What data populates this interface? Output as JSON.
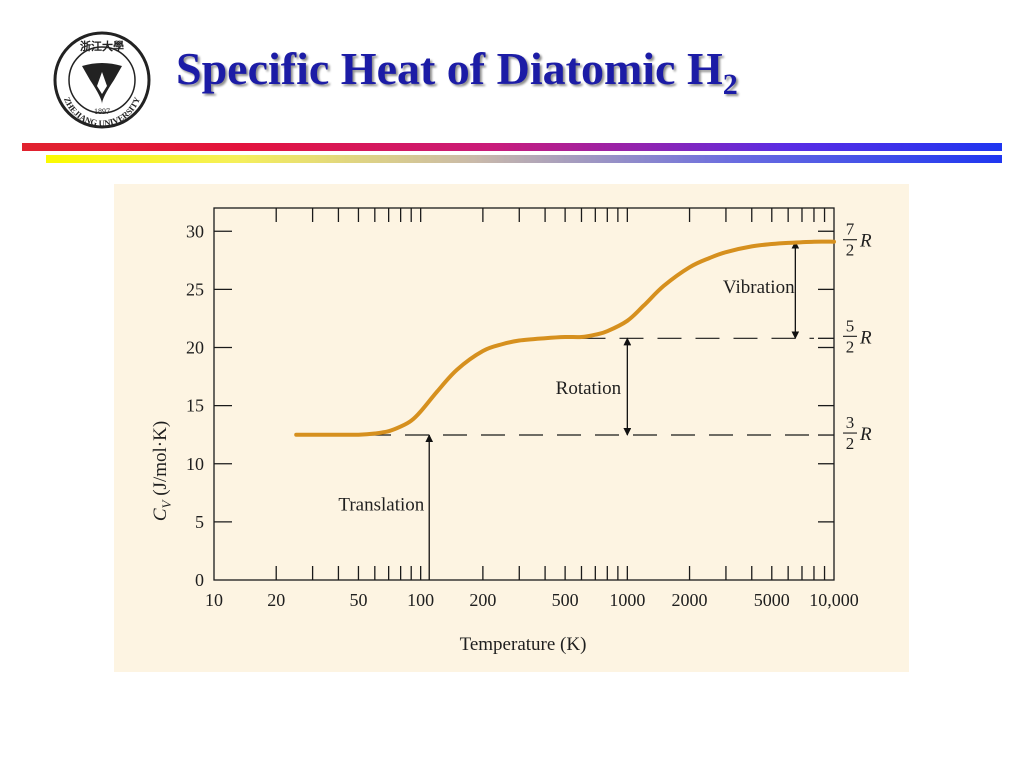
{
  "slide": {
    "title": "Specific Heat of Diatomic H",
    "title_subscript": "2",
    "title_color": "#1c1ca6"
  },
  "logo": {
    "icon": "zhejiang-university-seal-icon",
    "top_text": "浙江大學",
    "year": "1897",
    "bottom_text": "ZHEJIANG UNIVERSITY"
  },
  "colors": {
    "curve": "#d6901e",
    "panel_background": "#fdf4e2",
    "band_top_start": "#e1222e",
    "band_top_end": "#1f36f0",
    "band_bottom_start": "#fbfb00",
    "band_bottom_end": "#1f36f0"
  },
  "chart_data": {
    "type": "line",
    "x_scale": "log",
    "xlim": [
      10,
      10000
    ],
    "ylim": [
      0,
      32
    ],
    "xlabel": "Temperature (K)",
    "ylabel": "C_V (J/mol·K)",
    "ylabel_main": "C",
    "ylabel_sub": "V",
    "ylabel_units": " (J/mol·K)",
    "x_ticks": [
      10,
      20,
      50,
      100,
      200,
      500,
      1000,
      2000,
      5000,
      10000
    ],
    "x_tick_labels": [
      "10",
      "20",
      "50",
      "100",
      "200",
      "500",
      "1000",
      "2000",
      "5000",
      "10,000"
    ],
    "y_ticks": [
      0,
      5,
      10,
      15,
      20,
      25,
      30
    ],
    "y_tick_labels": [
      "0",
      "5",
      "10",
      "15",
      "20",
      "25",
      "30"
    ],
    "series": [
      {
        "x": [
          25,
          30,
          40,
          50,
          60,
          70,
          80,
          90,
          100,
          120,
          150,
          200,
          250,
          300,
          400,
          500,
          600,
          700,
          800,
          1000,
          1200,
          1500,
          2000,
          2500,
          3000,
          4000,
          5000,
          6000,
          8000,
          10000
        ],
        "y": [
          12.5,
          12.5,
          12.5,
          12.5,
          12.6,
          12.8,
          13.2,
          13.7,
          14.5,
          16.2,
          18.1,
          19.7,
          20.3,
          20.6,
          20.8,
          20.9,
          20.9,
          21.1,
          21.4,
          22.3,
          23.6,
          25.3,
          26.9,
          27.7,
          28.2,
          28.7,
          28.9,
          29.0,
          29.1,
          29.1
        ]
      }
    ],
    "reference_levels": [
      {
        "value": 12.47,
        "label_num": "3",
        "label_den": "2",
        "label_var": "R",
        "x_from": 55,
        "x_to": 8000
      },
      {
        "value": 20.79,
        "label_num": "5",
        "label_den": "2",
        "label_var": "R",
        "x_from": 600,
        "x_to": 8000
      },
      {
        "value": 29.1,
        "label_num": "7",
        "label_den": "2",
        "label_var": "R",
        "x_from": null,
        "x_to": null
      }
    ],
    "annotations": [
      {
        "text": "Translation",
        "arrow_x": 110,
        "arrow_from": 0,
        "arrow_to": 12.47,
        "text_x": 40,
        "text_y": 6
      },
      {
        "text": "Rotation",
        "arrow_x": 1000,
        "arrow_from": 12.47,
        "arrow_to": 20.79,
        "text_x": 450,
        "text_y": 16
      },
      {
        "text": "Vibration",
        "arrow_x": 6500,
        "arrow_from": 20.79,
        "arrow_to": 29.1,
        "text_x": 2900,
        "text_y": 24.7
      }
    ],
    "grid": false
  }
}
